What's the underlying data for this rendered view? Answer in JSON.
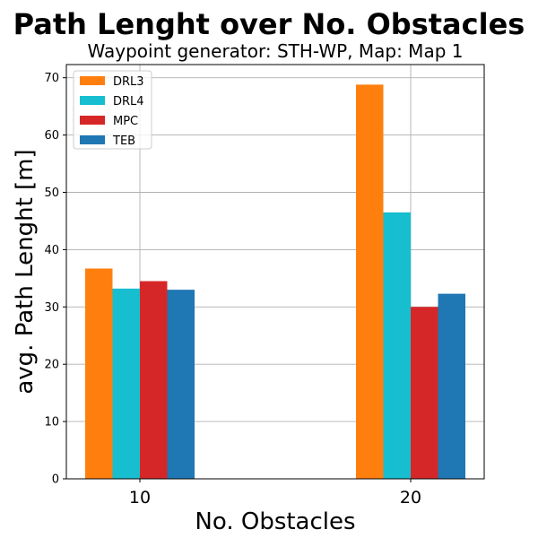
{
  "chart_data": {
    "type": "bar",
    "title": "Path Lenght over No. Obstacles",
    "subtitle": "Waypoint generator: STH-WP, Map: Map 1",
    "xlabel": "No. Obstacles",
    "ylabel": "avg. Path Lenght [m]",
    "categories": [
      "10",
      "20"
    ],
    "series": [
      {
        "name": "DRL3",
        "color": "#ff7f0e",
        "values": [
          36.7,
          68.8
        ]
      },
      {
        "name": "DRL4",
        "color": "#17becf",
        "values": [
          33.2,
          46.5
        ]
      },
      {
        "name": "MPC",
        "color": "#d62728",
        "values": [
          34.5,
          30.0
        ]
      },
      {
        "name": "TEB",
        "color": "#1f77b4",
        "values": [
          33.0,
          32.3
        ]
      }
    ],
    "ylim": [
      0,
      72.3
    ],
    "yticks": [
      0,
      10,
      20,
      30,
      40,
      50,
      60,
      70
    ],
    "grid": true,
    "legend_position": "top-left"
  }
}
